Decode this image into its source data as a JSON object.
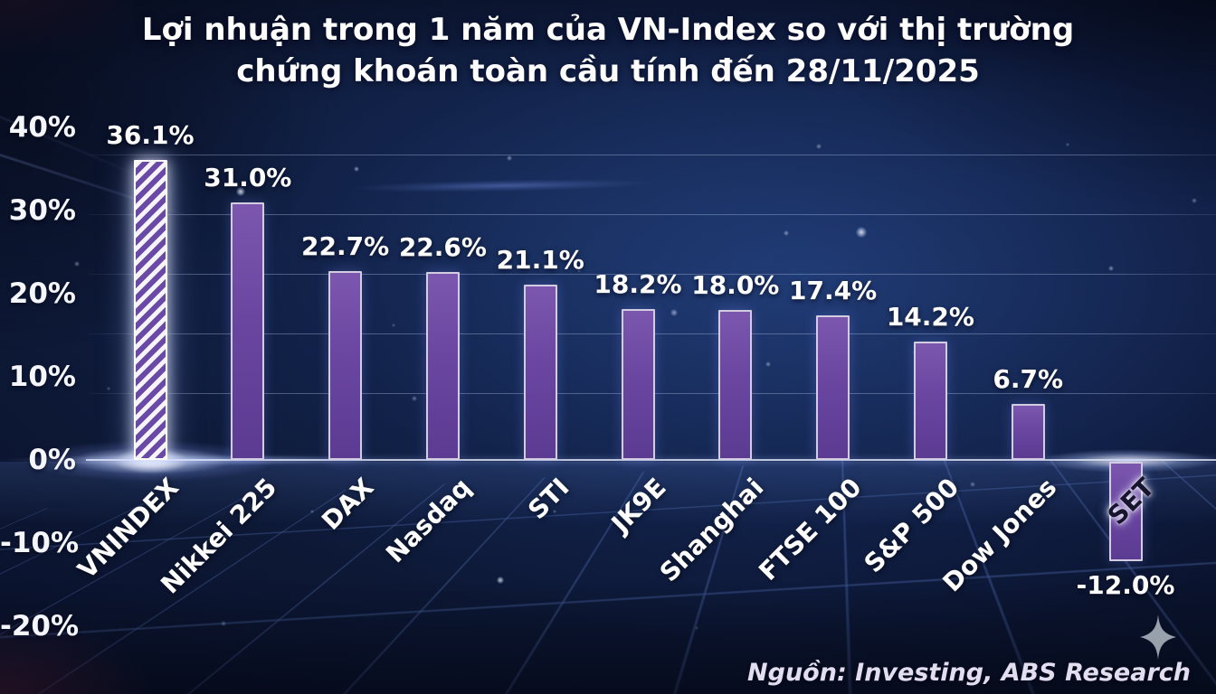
{
  "title": {
    "line1": "Lợi nhuận trong 1 năm của VN-Index so với thị trường",
    "line2": "chứng khoán toàn cầu tính đến 28/11/2025"
  },
  "source": "Nguồn: Investing, ABS Research",
  "icons": {
    "sparkle": "four-pointed-sparkle"
  },
  "chart_data": {
    "type": "bar",
    "title": "Lợi nhuận trong 1 năm của VN-Index so với thị trường chứng khoán toàn cầu tính đến 28/11/2025",
    "categories": [
      "VNINDEX",
      "Nikkei 225",
      "DAX",
      "Nasdaq",
      "STI",
      "JK9E",
      "Shanghai",
      "FTSE 100",
      "S&P 500",
      "Dow Jones",
      "SET"
    ],
    "values": [
      36.1,
      31.0,
      22.7,
      22.6,
      21.1,
      18.2,
      18.0,
      17.4,
      14.2,
      6.7,
      -12.0
    ],
    "data_labels": [
      "36.1%",
      "31.0%",
      "22.7%",
      "22.6%",
      "21.1%",
      "18.2%",
      "18.0%",
      "17.4%",
      "14.2%",
      "6.7%",
      "-12.0%"
    ],
    "y_ticks": [
      {
        "label": "40%",
        "value": 40
      },
      {
        "label": "30%",
        "value": 30
      },
      {
        "label": "20%",
        "value": 20
      },
      {
        "label": "10%",
        "value": 10
      },
      {
        "label": "0%",
        "value": 0
      },
      {
        "label": "-10%",
        "value": -10
      },
      {
        "label": "-20%",
        "value": -20
      }
    ],
    "ylim": [
      -20,
      40
    ],
    "grid": true,
    "legend": false,
    "highlight_index": 0,
    "highlight_style": "white-diagonal-hatch-with-glow",
    "bar_color": "#6a46a1",
    "bar_border_color": "#d6d0e2",
    "negative_label_color": "#17142f",
    "label_color": "#ffffff",
    "background_color": "#0d1838",
    "source": "Nguồn: Investing, ABS Research"
  }
}
